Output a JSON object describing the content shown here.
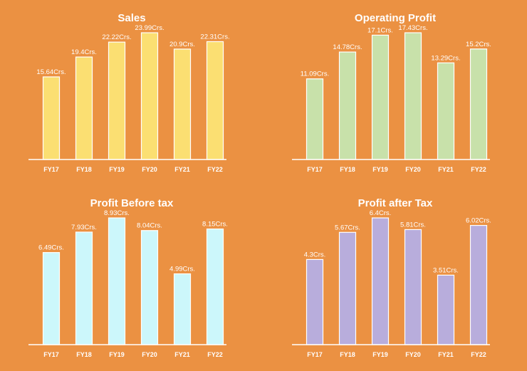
{
  "chart_data": [
    {
      "type": "bar",
      "title": "Sales",
      "categories": [
        "FY17",
        "FY18",
        "FY19",
        "FY20",
        "FY21",
        "FY22"
      ],
      "values": [
        15.64,
        19.4,
        22.22,
        23.99,
        20.9,
        22.31
      ],
      "data_labels": [
        "15.64Crs.",
        "19.4Crs.",
        "22.22Crs.",
        "23.99Crs.",
        "20.9Crs.",
        "22.31Crs."
      ],
      "color": "#FBDF72",
      "grid": false
    },
    {
      "type": "bar",
      "title": "Operating Profit",
      "categories": [
        "FY17",
        "FY18",
        "FY19",
        "FY20",
        "FY21",
        "FY22"
      ],
      "values": [
        11.09,
        14.78,
        17.1,
        17.43,
        13.29,
        15.2
      ],
      "data_labels": [
        "11.09Crs.",
        "14.78Crs.",
        "17.1Crs.",
        "17.43Crs.",
        "13.29Crs.",
        "15.2Crs."
      ],
      "color": "#C8E1AA",
      "grid": false
    },
    {
      "type": "bar",
      "title": "Profit Before tax",
      "categories": [
        "FY17",
        "FY18",
        "FY19",
        "FY20",
        "FY21",
        "FY22"
      ],
      "values": [
        6.49,
        7.93,
        8.93,
        8.04,
        4.99,
        8.15
      ],
      "data_labels": [
        "6.49Crs.",
        "7.93Crs.",
        "8.93Crs.",
        "8.04Crs.",
        "4.99Crs.",
        "8.15Crs."
      ],
      "color": "#CCF7FB",
      "grid": false
    },
    {
      "type": "bar",
      "title": "Profit after Tax",
      "categories": [
        "FY17",
        "FY18",
        "FY19",
        "FY20",
        "FY21",
        "FY22"
      ],
      "values": [
        4.3,
        5.67,
        6.4,
        5.81,
        3.51,
        6.02
      ],
      "data_labels": [
        "4.3Crs.",
        "5.67Crs.",
        "6.4Crs.",
        "5.81Crs.",
        "3.51Crs.",
        "6.02Crs."
      ],
      "color": "#B8ADDC",
      "grid": false
    }
  ]
}
